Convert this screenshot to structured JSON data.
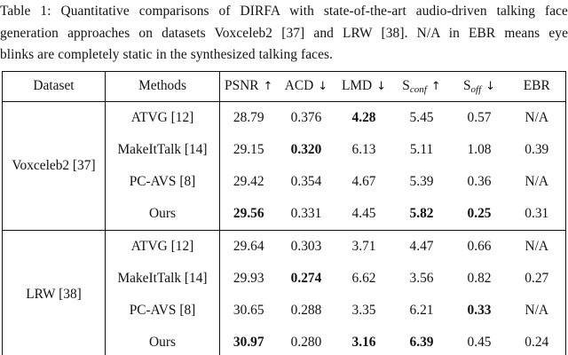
{
  "caption": {
    "lines": [
      "Table 1:  Quantitative comparisons of DIRFA with state-of-the-art audio-driven talking face",
      "generation approaches on datasets Voxceleb2 [37] and LRW [38].  N/A in EBR means eye",
      "blinks are completely static in the synthesized talking faces."
    ]
  },
  "table": {
    "headers": {
      "dataset": "Dataset",
      "methods": "Methods",
      "metrics": [
        {
          "name": "PSNR",
          "sub": "",
          "arrow": "↑"
        },
        {
          "name": "ACD",
          "sub": "",
          "arrow": "↓"
        },
        {
          "name": "LMD",
          "sub": "",
          "arrow": "↓"
        },
        {
          "name": "S",
          "sub": "conf",
          "arrow": "↑"
        },
        {
          "name": "S",
          "sub": "off",
          "arrow": "↓"
        },
        {
          "name": "EBR",
          "sub": "",
          "arrow": ""
        }
      ]
    },
    "groups": [
      {
        "dataset": "Voxceleb2 [37]",
        "rows": [
          {
            "method": "ATVG [12]",
            "values": [
              "28.79",
              "0.376",
              "4.28",
              "5.45",
              "0.57",
              "N/A"
            ],
            "bold": [
              false,
              false,
              true,
              false,
              false,
              false
            ]
          },
          {
            "method": "MakeItTalk [14]",
            "values": [
              "29.15",
              "0.320",
              "6.13",
              "5.11",
              "1.08",
              "0.39"
            ],
            "bold": [
              false,
              true,
              false,
              false,
              false,
              false
            ]
          },
          {
            "method": "PC-AVS [8]",
            "values": [
              "29.42",
              "0.354",
              "4.67",
              "5.39",
              "0.36",
              "N/A"
            ],
            "bold": [
              false,
              false,
              false,
              false,
              false,
              false
            ]
          },
          {
            "method": "Ours",
            "values": [
              "29.56",
              "0.331",
              "4.45",
              "5.82",
              "0.25",
              "0.31"
            ],
            "bold": [
              true,
              false,
              false,
              true,
              true,
              false
            ]
          }
        ]
      },
      {
        "dataset": "LRW [38]",
        "rows": [
          {
            "method": "ATVG [12]",
            "values": [
              "29.64",
              "0.303",
              "3.71",
              "4.47",
              "0.66",
              "N/A"
            ],
            "bold": [
              false,
              false,
              false,
              false,
              false,
              false
            ]
          },
          {
            "method": "MakeItTalk [14]",
            "values": [
              "29.93",
              "0.274",
              "6.62",
              "3.56",
              "0.82",
              "0.27"
            ],
            "bold": [
              false,
              true,
              false,
              false,
              false,
              false
            ]
          },
          {
            "method": "PC-AVS [8]",
            "values": [
              "30.65",
              "0.288",
              "3.35",
              "6.21",
              "0.33",
              "N/A"
            ],
            "bold": [
              false,
              false,
              false,
              false,
              true,
              false
            ]
          },
          {
            "method": "Ours",
            "values": [
              "30.97",
              "0.280",
              "3.16",
              "6.39",
              "0.45",
              "0.24"
            ],
            "bold": [
              true,
              false,
              true,
              true,
              false,
              false
            ]
          }
        ]
      }
    ]
  },
  "colors": {
    "text": "#111111",
    "border": "#101010",
    "background": "#ffffff"
  }
}
